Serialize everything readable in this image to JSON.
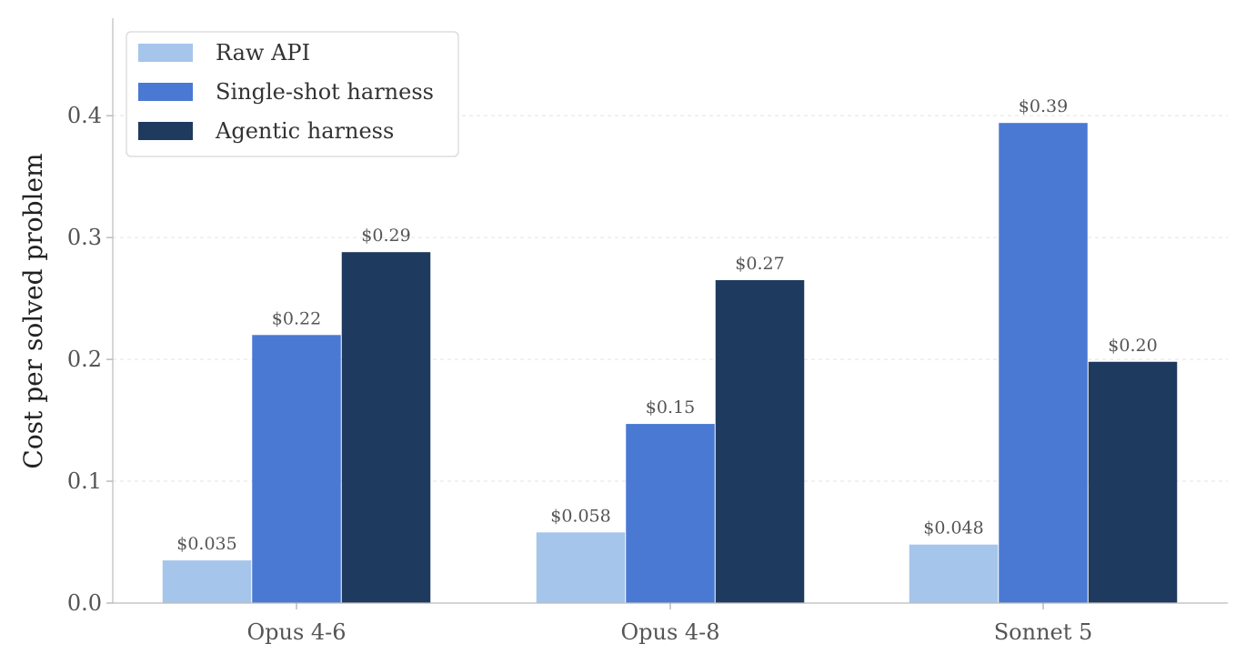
{
  "chart_data": {
    "type": "bar",
    "title": "",
    "xlabel": "",
    "ylabel": "Cost per solved problem",
    "categories": [
      "Opus 4-6",
      "Opus 4-8",
      "Sonnet 5"
    ],
    "series": [
      {
        "name": "Raw API",
        "values": [
          0.035,
          0.058,
          0.048
        ],
        "labels": [
          "$0.035",
          "$0.058",
          "$0.048"
        ],
        "color": "#a6c5ea"
      },
      {
        "name": "Single-shot harness",
        "values": [
          0.22,
          0.147,
          0.394
        ],
        "labels": [
          "$0.22",
          "$0.15",
          "$0.39"
        ],
        "color": "#4a79d3"
      },
      {
        "name": "Agentic harness",
        "values": [
          0.288,
          0.265,
          0.198
        ],
        "labels": [
          "$0.29",
          "$0.27",
          "$0.20"
        ],
        "color": "#1f3a5f"
      }
    ],
    "ylim": [
      0,
      0.48
    ],
    "yticks": [
      0.0,
      0.1,
      0.2,
      0.3,
      0.4
    ],
    "ytick_labels": [
      "0.0",
      "0.1",
      "0.2",
      "0.3",
      "0.4"
    ],
    "grid": "y-dashed",
    "legend_position": "top-left"
  }
}
